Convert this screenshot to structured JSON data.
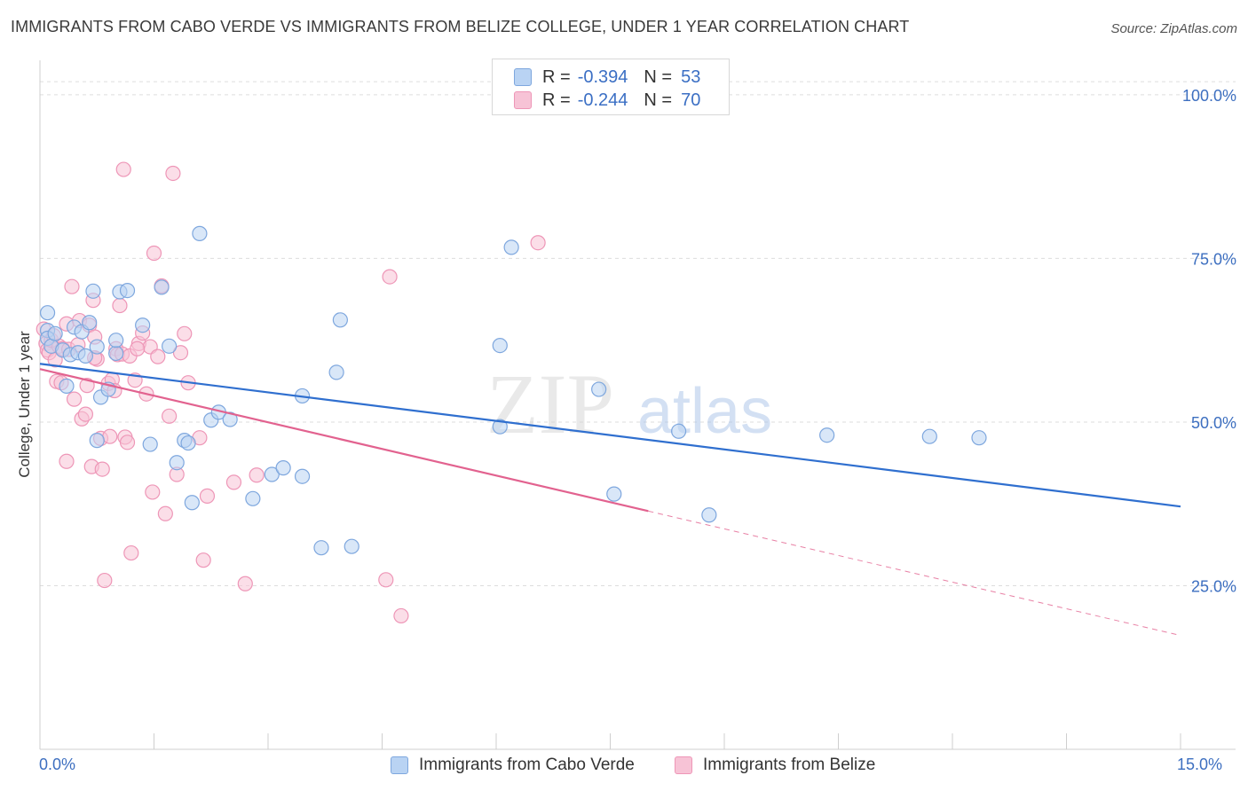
{
  "header": {
    "title": "IMMIGRANTS FROM CABO VERDE VS IMMIGRANTS FROM BELIZE COLLEGE, UNDER 1 YEAR CORRELATION CHART",
    "source": "Source: ZipAtlas.com"
  },
  "watermark": {
    "zip": "ZIP",
    "atlas": "atlas"
  },
  "legend": {
    "blue": {
      "r_label": "R =",
      "r_value": "-0.394",
      "n_label": "N =",
      "n_value": "53"
    },
    "pink": {
      "r_label": "R =",
      "r_value": "-0.244",
      "n_label": "N =",
      "n_value": "70"
    }
  },
  "colors": {
    "blue_fill": "#b9d3f3",
    "blue_stroke": "#7ea7de",
    "blue_line": "#2f6fcf",
    "pink_fill": "#f7c3d6",
    "pink_stroke": "#ee96b7",
    "pink_line": "#e2628f",
    "tick_text": "#3d6fc0",
    "grid": "#dddddd"
  },
  "chart_data": {
    "type": "scatter",
    "title": "IMMIGRANTS FROM CABO VERDE VS IMMIGRANTS FROM BELIZE COLLEGE, UNDER 1 YEAR CORRELATION CHART",
    "xlabel": "",
    "ylabel": "College, Under 1 year",
    "xlim": [
      0,
      15
    ],
    "ylim": [
      0,
      105
    ],
    "x_tick_labels": [
      "0.0%",
      "15.0%"
    ],
    "y_ticks": [
      25,
      50,
      75,
      100
    ],
    "y_tick_labels": [
      "25.0%",
      "50.0%",
      "75.0%",
      "100.0%"
    ],
    "grid": true,
    "legend_position": "bottom",
    "series": [
      {
        "name": "Immigrants from Cabo Verde",
        "color": "blue",
        "points": [
          [
            0.1,
            66.7
          ],
          [
            0.1,
            64.0
          ],
          [
            0.1,
            62.8
          ],
          [
            0.15,
            61.6
          ],
          [
            0.2,
            63.5
          ],
          [
            0.3,
            61.0
          ],
          [
            0.35,
            55.5
          ],
          [
            0.4,
            60.3
          ],
          [
            0.45,
            64.5
          ],
          [
            0.5,
            60.6
          ],
          [
            0.55,
            63.8
          ],
          [
            0.6,
            60.1
          ],
          [
            0.65,
            65.2
          ],
          [
            0.7,
            70.0
          ],
          [
            0.75,
            47.2
          ],
          [
            0.75,
            61.5
          ],
          [
            0.8,
            53.8
          ],
          [
            0.9,
            55.0
          ],
          [
            1.0,
            60.5
          ],
          [
            1.0,
            62.5
          ],
          [
            1.05,
            69.9
          ],
          [
            1.15,
            70.1
          ],
          [
            1.35,
            64.8
          ],
          [
            1.45,
            46.6
          ],
          [
            1.6,
            70.6
          ],
          [
            1.7,
            61.6
          ],
          [
            1.8,
            43.8
          ],
          [
            1.9,
            47.2
          ],
          [
            1.95,
            46.8
          ],
          [
            2.0,
            37.7
          ],
          [
            2.1,
            78.8
          ],
          [
            2.25,
            50.3
          ],
          [
            2.35,
            51.5
          ],
          [
            2.5,
            50.4
          ],
          [
            2.8,
            38.3
          ],
          [
            3.05,
            42.0
          ],
          [
            3.2,
            43.0
          ],
          [
            3.45,
            41.7
          ],
          [
            3.45,
            54.0
          ],
          [
            3.7,
            30.8
          ],
          [
            3.9,
            57.6
          ],
          [
            3.95,
            65.6
          ],
          [
            4.1,
            31.0
          ],
          [
            6.05,
            49.3
          ],
          [
            6.05,
            61.7
          ],
          [
            6.2,
            76.7
          ],
          [
            7.35,
            55.0
          ],
          [
            7.55,
            39.0
          ],
          [
            8.4,
            48.6
          ],
          [
            8.8,
            35.8
          ],
          [
            10.35,
            48.0
          ],
          [
            11.7,
            47.8
          ],
          [
            12.35,
            47.6
          ]
        ]
      },
      {
        "name": "Immigrants from Belize",
        "color": "pink",
        "points": [
          [
            0.05,
            64.2
          ],
          [
            0.08,
            62.0
          ],
          [
            0.1,
            61.0
          ],
          [
            0.12,
            60.6
          ],
          [
            0.15,
            62.5
          ],
          [
            0.18,
            63.2
          ],
          [
            0.2,
            59.5
          ],
          [
            0.22,
            56.2
          ],
          [
            0.25,
            61.6
          ],
          [
            0.28,
            56.0
          ],
          [
            0.3,
            61.2
          ],
          [
            0.35,
            65.0
          ],
          [
            0.35,
            44.0
          ],
          [
            0.38,
            61.1
          ],
          [
            0.42,
            70.7
          ],
          [
            0.45,
            53.5
          ],
          [
            0.5,
            61.8
          ],
          [
            0.52,
            65.5
          ],
          [
            0.55,
            50.5
          ],
          [
            0.6,
            51.2
          ],
          [
            0.62,
            55.6
          ],
          [
            0.65,
            64.8
          ],
          [
            0.68,
            43.2
          ],
          [
            0.7,
            68.6
          ],
          [
            0.72,
            63.0
          ],
          [
            0.75,
            59.6
          ],
          [
            0.8,
            47.5
          ],
          [
            0.82,
            42.8
          ],
          [
            0.85,
            25.8
          ],
          [
            0.9,
            55.9
          ],
          [
            0.92,
            47.8
          ],
          [
            0.95,
            56.5
          ],
          [
            0.98,
            54.8
          ],
          [
            1.0,
            61.2
          ],
          [
            1.02,
            60.3
          ],
          [
            1.05,
            67.8
          ],
          [
            1.08,
            60.4
          ],
          [
            1.1,
            88.6
          ],
          [
            1.12,
            47.7
          ],
          [
            1.15,
            46.9
          ],
          [
            1.18,
            60.1
          ],
          [
            1.2,
            30.0
          ],
          [
            1.25,
            56.4
          ],
          [
            1.3,
            62.0
          ],
          [
            1.35,
            63.6
          ],
          [
            1.4,
            54.3
          ],
          [
            1.45,
            61.5
          ],
          [
            1.48,
            39.3
          ],
          [
            1.5,
            75.8
          ],
          [
            1.55,
            60.0
          ],
          [
            1.6,
            70.8
          ],
          [
            1.65,
            36.0
          ],
          [
            1.7,
            50.9
          ],
          [
            1.75,
            88.0
          ],
          [
            1.8,
            42.0
          ],
          [
            1.85,
            60.6
          ],
          [
            1.9,
            63.5
          ],
          [
            1.95,
            56.0
          ],
          [
            2.1,
            47.6
          ],
          [
            2.15,
            28.9
          ],
          [
            2.2,
            38.7
          ],
          [
            2.55,
            40.8
          ],
          [
            2.7,
            25.3
          ],
          [
            2.85,
            41.9
          ],
          [
            4.55,
            25.9
          ],
          [
            4.6,
            72.2
          ],
          [
            4.75,
            20.4
          ],
          [
            6.55,
            77.4
          ],
          [
            0.72,
            59.8
          ],
          [
            1.28,
            61.2
          ]
        ]
      }
    ],
    "trend_lines": [
      {
        "series": "Immigrants from Cabo Verde",
        "x0": 0,
        "y0": 58.9,
        "x1": 15,
        "y1": 37.1,
        "style": "solid"
      },
      {
        "series": "Immigrants from Belize",
        "x0": 0,
        "y0": 58.1,
        "x1": 8.0,
        "y1": 36.4,
        "style": "solid",
        "dashed_to_x": 15,
        "dashed_to_y": 17.4
      }
    ]
  }
}
